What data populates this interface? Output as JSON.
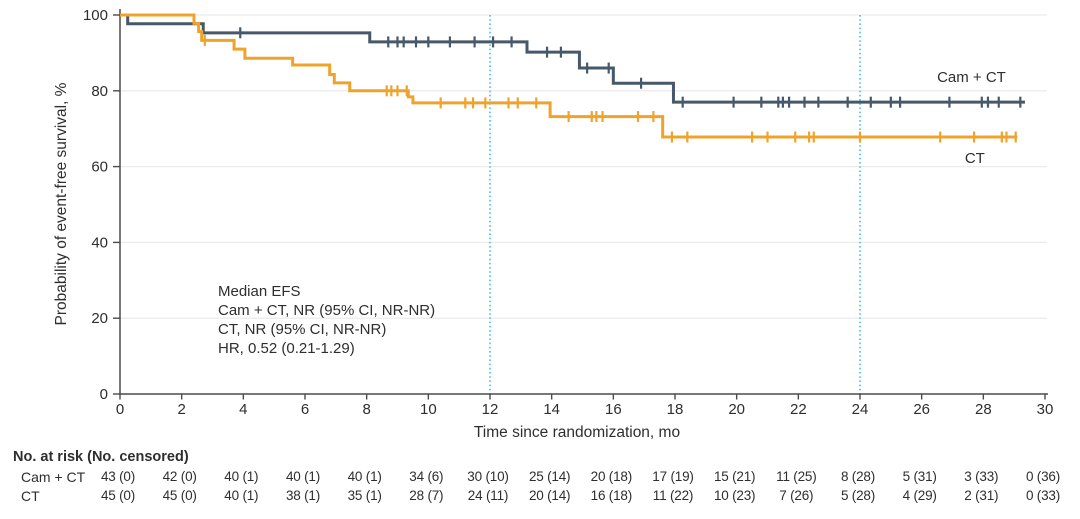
{
  "chart_data": {
    "type": "line",
    "subtype": "kaplan-meier-step",
    "title": "",
    "xlabel": "Time since randomization, mo",
    "ylabel": "Probability of event-free survival, %",
    "xlim": [
      0,
      30
    ],
    "ylim": [
      0,
      100
    ],
    "xticks": [
      0,
      2,
      4,
      6,
      8,
      10,
      12,
      14,
      16,
      18,
      20,
      22,
      24,
      26,
      28,
      30
    ],
    "yticks": [
      0,
      20,
      40,
      60,
      80,
      100
    ],
    "grid": "horizontal-light",
    "reference_lines_x": [
      12,
      24
    ],
    "reference_line_color": "#41c2ef",
    "annotation": {
      "lines": [
        "Median EFS",
        "Cam + CT, NR (95% CI, NR-NR)",
        "CT, NR (95% CI, NR-NR)",
        "HR, 0.52 (0.21-1.29)"
      ]
    },
    "series": [
      {
        "name": "Cam + CT",
        "end_label": "Cam + CT",
        "color": "#46586a",
        "label_t": 26.5,
        "label_v": 82.3,
        "start": [
          0,
          100
        ],
        "steps": [
          [
            0.25,
            97.7
          ],
          [
            2.7,
            95.3
          ],
          [
            8.1,
            92.9
          ],
          [
            13.2,
            90.2
          ],
          [
            14.9,
            86.0
          ],
          [
            16.0,
            82.0
          ],
          [
            17.95,
            77.0
          ]
        ],
        "end_t": 29.35,
        "censors": [
          [
            3.9,
            95.3
          ],
          [
            8.7,
            92.9
          ],
          [
            9.0,
            92.9
          ],
          [
            9.2,
            92.9
          ],
          [
            9.6,
            92.9
          ],
          [
            10.0,
            92.9
          ],
          [
            10.7,
            92.9
          ],
          [
            11.5,
            92.9
          ],
          [
            12.1,
            92.9
          ],
          [
            12.7,
            92.9
          ],
          [
            13.85,
            90.2
          ],
          [
            14.3,
            90.2
          ],
          [
            15.15,
            86.0
          ],
          [
            15.85,
            86.0
          ],
          [
            16.9,
            82.0
          ],
          [
            18.25,
            77.0
          ],
          [
            19.9,
            77.0
          ],
          [
            20.8,
            77.0
          ],
          [
            21.35,
            77.0
          ],
          [
            21.5,
            77.0
          ],
          [
            21.7,
            77.0
          ],
          [
            22.2,
            77.0
          ],
          [
            22.65,
            77.0
          ],
          [
            23.6,
            77.0
          ],
          [
            24.35,
            77.0
          ],
          [
            25.0,
            77.0
          ],
          [
            25.3,
            77.0
          ],
          [
            26.9,
            77.0
          ],
          [
            27.95,
            77.0
          ],
          [
            28.15,
            77.0
          ],
          [
            28.5,
            77.0
          ],
          [
            29.2,
            77.0
          ]
        ]
      },
      {
        "name": "CT",
        "end_label": "CT",
        "color": "#f0a32b",
        "label_t": 27.4,
        "label_v": 61.0,
        "start": [
          0,
          100
        ],
        "steps": [
          [
            2.4,
            97.8
          ],
          [
            2.55,
            95.6
          ],
          [
            2.65,
            93.3
          ],
          [
            3.7,
            91.0
          ],
          [
            4.05,
            88.6
          ],
          [
            5.6,
            86.8
          ],
          [
            6.8,
            84.3
          ],
          [
            6.95,
            82.1
          ],
          [
            7.45,
            80.0
          ],
          [
            9.35,
            78.4
          ],
          [
            9.5,
            76.8
          ],
          [
            13.95,
            73.2
          ],
          [
            17.6,
            67.8
          ]
        ],
        "end_t": 29.1,
        "censors": [
          [
            2.75,
            93.3
          ],
          [
            8.65,
            80.0
          ],
          [
            8.8,
            80.0
          ],
          [
            9.0,
            80.0
          ],
          [
            9.3,
            80.0
          ],
          [
            10.4,
            76.8
          ],
          [
            11.2,
            76.8
          ],
          [
            11.45,
            76.8
          ],
          [
            11.85,
            76.8
          ],
          [
            12.6,
            76.8
          ],
          [
            12.9,
            76.8
          ],
          [
            13.5,
            76.8
          ],
          [
            14.55,
            73.2
          ],
          [
            15.3,
            73.2
          ],
          [
            15.45,
            73.2
          ],
          [
            15.65,
            73.2
          ],
          [
            16.8,
            73.2
          ],
          [
            17.3,
            73.2
          ],
          [
            17.9,
            67.8
          ],
          [
            18.4,
            67.8
          ],
          [
            20.5,
            67.8
          ],
          [
            21.0,
            67.8
          ],
          [
            21.9,
            67.8
          ],
          [
            22.35,
            67.8
          ],
          [
            22.5,
            67.8
          ],
          [
            24.0,
            67.8
          ],
          [
            26.6,
            67.8
          ],
          [
            27.7,
            67.8
          ],
          [
            28.6,
            67.8
          ],
          [
            28.75,
            67.8
          ],
          [
            29.05,
            67.8
          ]
        ]
      }
    ]
  },
  "risk_table": {
    "header": "No. at risk (No. censored)",
    "times": [
      0,
      2,
      4,
      6,
      8,
      10,
      12,
      14,
      16,
      18,
      20,
      22,
      24,
      26,
      28,
      30
    ],
    "rows": [
      {
        "label": "Cam + CT",
        "values": [
          "43 (0)",
          "42 (0)",
          "40 (1)",
          "40 (1)",
          "40 (1)",
          "34 (6)",
          "30 (10)",
          "25 (14)",
          "20 (18)",
          "17 (19)",
          "15 (21)",
          "11 (25)",
          "8 (28)",
          "5 (31)",
          "3 (33)",
          "0 (36)"
        ]
      },
      {
        "label": "CT",
        "values": [
          "45 (0)",
          "45 (0)",
          "40 (1)",
          "38 (1)",
          "35 (1)",
          "28 (7)",
          "24 (11)",
          "20 (14)",
          "16 (18)",
          "11 (22)",
          "10 (23)",
          "7 (26)",
          "5 (28)",
          "4 (29)",
          "2 (31)",
          "0 (33)"
        ]
      }
    ]
  },
  "colors": {
    "cam_ct": "#46586a",
    "ct": "#f0a32b",
    "reference_line": "#41c2ef",
    "gridline": "#ececec",
    "axis": "#4b4b4b",
    "text": "#2e2e2e"
  }
}
